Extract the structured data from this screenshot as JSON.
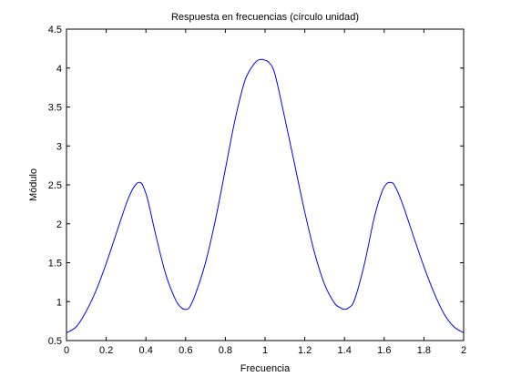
{
  "chart_data": {
    "type": "line",
    "title": "Respuesta en frecuencias (círculo unidad)",
    "xlabel": "Frecuencia",
    "ylabel": "Módulo",
    "xlim": [
      0,
      2
    ],
    "ylim": [
      0.5,
      4.5
    ],
    "grid": false,
    "xticks": [
      0,
      0.2,
      0.4,
      0.6,
      0.8,
      1,
      1.2,
      1.4,
      1.6,
      1.8,
      2
    ],
    "xtick_labels": [
      "0",
      "0.2",
      "0.4",
      "0.6",
      "0.8",
      "1",
      "1.2",
      "1.4",
      "1.6",
      "1.8",
      "2"
    ],
    "yticks": [
      0.5,
      1,
      1.5,
      2,
      2.5,
      3,
      3.5,
      4,
      4.5
    ],
    "ytick_labels": [
      "0.5",
      "1",
      "1.5",
      "2",
      "2.5",
      "3",
      "3.5",
      "4",
      "4.5"
    ],
    "series": [
      {
        "color": "#0000ff",
        "x": [
          0,
          0.05,
          0.1,
          0.15,
          0.2,
          0.25,
          0.3,
          0.33,
          0.355,
          0.37,
          0.385,
          0.41,
          0.45,
          0.5,
          0.55,
          0.58,
          0.6,
          0.62,
          0.65,
          0.7,
          0.75,
          0.8,
          0.85,
          0.9,
          0.95,
          0.98,
          1,
          1.02,
          1.05,
          1.1,
          1.15,
          1.2,
          1.25,
          1.3,
          1.35,
          1.38,
          1.4,
          1.42,
          1.45,
          1.5,
          1.55,
          1.59,
          1.615,
          1.63,
          1.645,
          1.67,
          1.7,
          1.75,
          1.8,
          1.85,
          1.9,
          1.95,
          2
        ],
        "y": [
          0.6,
          0.68,
          0.88,
          1.15,
          1.49,
          1.87,
          2.25,
          2.43,
          2.52,
          2.53,
          2.49,
          2.3,
          1.85,
          1.35,
          1.02,
          0.92,
          0.9,
          0.93,
          1.1,
          1.5,
          2.05,
          2.7,
          3.35,
          3.85,
          4.07,
          4.11,
          4.1,
          4.07,
          3.92,
          3.35,
          2.75,
          2.15,
          1.62,
          1.22,
          0.98,
          0.92,
          0.9,
          0.92,
          1.02,
          1.48,
          2.08,
          2.42,
          2.52,
          2.53,
          2.52,
          2.4,
          2.2,
          1.82,
          1.45,
          1.12,
          0.85,
          0.68,
          0.6
        ]
      }
    ]
  }
}
